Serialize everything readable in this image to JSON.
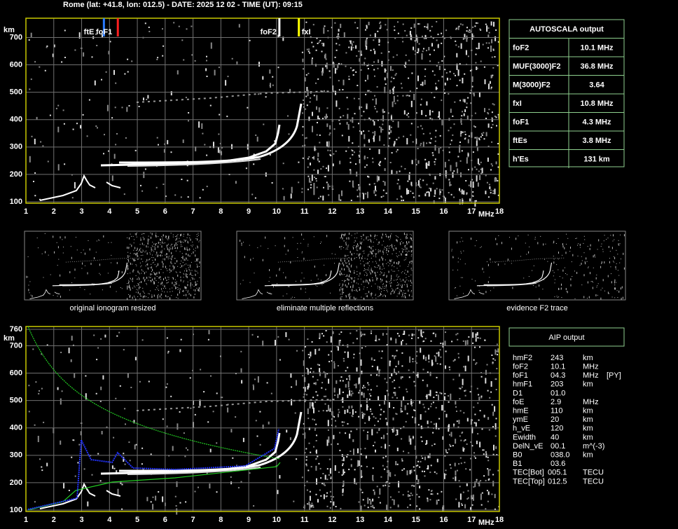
{
  "header": {
    "title": "Rome (lat: +41.8, lon: 012.5) - DATE: 2025 12 02 - TIME (UT): 09:15"
  },
  "top_panel": {
    "y_unit": "km",
    "x_unit": "MHz",
    "xlim": [
      1,
      18
    ],
    "ylim": [
      100,
      760
    ],
    "xticks": [
      1,
      2,
      3,
      4,
      5,
      6,
      7,
      8,
      9,
      10,
      11,
      12,
      13,
      14,
      15,
      16,
      17,
      18
    ],
    "yticks": [
      100,
      200,
      300,
      400,
      500,
      600,
      700
    ],
    "markers": [
      {
        "label": "ftE",
        "freq": 3.8,
        "color": "#2a7bff"
      },
      {
        "label": "foF1",
        "freq": 4.3,
        "color": "#ff2020"
      },
      {
        "label": "foF2",
        "freq": 10.1,
        "color": "#ffffff"
      },
      {
        "label": "fxI",
        "freq": 10.8,
        "color": "#ffff00"
      }
    ]
  },
  "autoscala": {
    "title": "AUTOSCALA output",
    "rows": [
      {
        "label": "foF2",
        "value": "10.1 MHz",
        "color": "#ffffff"
      },
      {
        "label": "MUF(3000)F2",
        "value": "36.8 MHz",
        "color": "#ffffff"
      },
      {
        "label": "M(3000)F2",
        "value": "3.64",
        "color": "#ffffff"
      },
      {
        "label": "fxI",
        "value": "10.8 MHz",
        "color": "#ffff00"
      },
      {
        "label": "foF1",
        "value": "4.3 MHz",
        "color": "#ff2020"
      },
      {
        "label": "ftEs",
        "value": "3.8 MHz",
        "color": "#2a7bff"
      },
      {
        "label": "h'Es",
        "value": "131     km",
        "color": "#ffffff"
      }
    ]
  },
  "thumbnails": [
    {
      "caption": "original ionogram resized"
    },
    {
      "caption": "eliminate multiple reflections"
    },
    {
      "caption": "evidence F2 trace"
    }
  ],
  "bottom_panel": {
    "y_unit": "km",
    "x_unit": "MHz",
    "xlim": [
      1,
      18
    ],
    "ylim": [
      100,
      760
    ],
    "xticks": [
      1,
      2,
      3,
      4,
      5,
      6,
      7,
      8,
      9,
      10,
      11,
      12,
      13,
      14,
      15,
      16,
      17,
      18
    ],
    "yticks": [
      100,
      200,
      300,
      400,
      500,
      600,
      700,
      760
    ]
  },
  "aip": {
    "title": "AIP output",
    "rows": [
      [
        "hmF2",
        "243",
        "km"
      ],
      [
        "foF2",
        "10.1",
        "MHz"
      ],
      [
        "foF1",
        "04.3",
        "MHz",
        "[PY]"
      ],
      [
        "hmF1",
        "203",
        "km"
      ],
      [
        "D1",
        "01.0"
      ],
      [
        "foE",
        "2.9",
        "MHz"
      ],
      [
        "hmE",
        "110",
        "km"
      ],
      [
        "ymE",
        "20",
        "km"
      ],
      [
        "h_vE",
        "120",
        "km"
      ],
      [
        "Ewidth",
        "40",
        "km"
      ],
      [
        "DelN_vE",
        "00.1",
        "m^(-3)"
      ],
      [
        "B0",
        "038.0",
        "km"
      ],
      [
        "B1",
        "03.6"
      ],
      [
        "TEC[Bot]",
        "005.1",
        "TECU"
      ],
      [
        "TEC[Top]",
        "012.5",
        "TECU"
      ]
    ]
  }
}
